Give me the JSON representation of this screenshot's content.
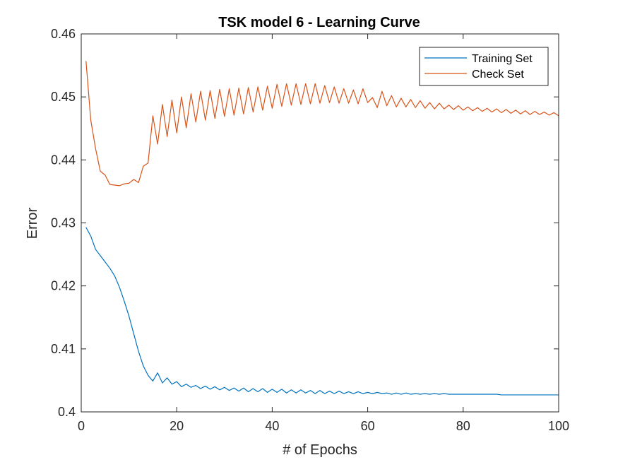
{
  "chart_data": {
    "type": "line",
    "title": "TSK model 6 - Learning Curve",
    "xlabel": "# of Epochs",
    "ylabel": "Error",
    "xlim": [
      0,
      100
    ],
    "ylim": [
      0.4,
      0.46
    ],
    "xticks": [
      0,
      20,
      40,
      60,
      80,
      100
    ],
    "xtick_labels": [
      "0",
      "20",
      "40",
      "60",
      "80",
      "100"
    ],
    "yticks": [
      0.4,
      0.41,
      0.42,
      0.43,
      0.44,
      0.45,
      0.46
    ],
    "ytick_labels": [
      "0.4",
      "0.41",
      "0.42",
      "0.43",
      "0.44",
      "0.45",
      "0.46"
    ],
    "grid": false,
    "legend_position": "top-right",
    "x": [
      1,
      2,
      3,
      4,
      5,
      6,
      7,
      8,
      9,
      10,
      11,
      12,
      13,
      14,
      15,
      16,
      17,
      18,
      19,
      20,
      21,
      22,
      23,
      24,
      25,
      26,
      27,
      28,
      29,
      30,
      31,
      32,
      33,
      34,
      35,
      36,
      37,
      38,
      39,
      40,
      41,
      42,
      43,
      44,
      45,
      46,
      47,
      48,
      49,
      50,
      51,
      52,
      53,
      54,
      55,
      56,
      57,
      58,
      59,
      60,
      61,
      62,
      63,
      64,
      65,
      66,
      67,
      68,
      69,
      70,
      71,
      72,
      73,
      74,
      75,
      76,
      77,
      78,
      79,
      80,
      81,
      82,
      83,
      84,
      85,
      86,
      87,
      88,
      89,
      90,
      91,
      92,
      93,
      94,
      95,
      96,
      97,
      98,
      99,
      100
    ],
    "series": [
      {
        "name": "Training Set",
        "color": "#0072BD",
        "values": [
          0.4293,
          0.4279,
          0.4258,
          0.4248,
          0.4238,
          0.4228,
          0.4216,
          0.4198,
          0.4176,
          0.4152,
          0.4124,
          0.4096,
          0.4073,
          0.4058,
          0.4049,
          0.4062,
          0.4046,
          0.4054,
          0.4044,
          0.4048,
          0.404,
          0.4044,
          0.4039,
          0.4042,
          0.4037,
          0.4041,
          0.4036,
          0.404,
          0.4035,
          0.4039,
          0.4034,
          0.4038,
          0.4033,
          0.4038,
          0.4032,
          0.4037,
          0.4032,
          0.4037,
          0.4031,
          0.4036,
          0.4031,
          0.4036,
          0.403,
          0.4035,
          0.403,
          0.4035,
          0.403,
          0.4034,
          0.4029,
          0.4034,
          0.4029,
          0.4033,
          0.4029,
          0.4033,
          0.4029,
          0.4032,
          0.4029,
          0.4032,
          0.4029,
          0.4031,
          0.4029,
          0.4031,
          0.4029,
          0.403,
          0.4028,
          0.403,
          0.4028,
          0.403,
          0.4028,
          0.4029,
          0.4028,
          0.4029,
          0.4028,
          0.4029,
          0.4028,
          0.4029,
          0.4028,
          0.4028,
          0.4028,
          0.4028,
          0.4028,
          0.4028,
          0.4028,
          0.4028,
          0.4028,
          0.4028,
          0.4028,
          0.4027,
          0.4027,
          0.4027,
          0.4027,
          0.4027,
          0.4027,
          0.4027,
          0.4027,
          0.4027,
          0.4027,
          0.4027,
          0.4027,
          0.4027
        ]
      },
      {
        "name": "Check Set",
        "color": "#D95319",
        "values": [
          0.4557,
          0.4463,
          0.4418,
          0.4382,
          0.4376,
          0.4361,
          0.436,
          0.4359,
          0.4362,
          0.4363,
          0.4369,
          0.4364,
          0.439,
          0.4395,
          0.447,
          0.4425,
          0.4488,
          0.4437,
          0.4495,
          0.4443,
          0.45,
          0.4451,
          0.4505,
          0.446,
          0.4509,
          0.4463,
          0.451,
          0.4466,
          0.4512,
          0.4469,
          0.4513,
          0.4471,
          0.4514,
          0.4473,
          0.4515,
          0.4476,
          0.4516,
          0.4479,
          0.4517,
          0.4482,
          0.452,
          0.4485,
          0.4521,
          0.4487,
          0.4521,
          0.4488,
          0.4521,
          0.4489,
          0.4521,
          0.449,
          0.4518,
          0.4491,
          0.4516,
          0.449,
          0.4513,
          0.449,
          0.4511,
          0.4489,
          0.4513,
          0.4491,
          0.4499,
          0.4483,
          0.4509,
          0.4486,
          0.4502,
          0.4484,
          0.4498,
          0.4484,
          0.4496,
          0.4483,
          0.4494,
          0.4482,
          0.4491,
          0.4481,
          0.449,
          0.4481,
          0.4487,
          0.448,
          0.4486,
          0.4479,
          0.4484,
          0.4478,
          0.4483,
          0.4477,
          0.4482,
          0.4476,
          0.4481,
          0.4475,
          0.448,
          0.4474,
          0.4479,
          0.4473,
          0.4478,
          0.4472,
          0.4477,
          0.4472,
          0.4476,
          0.4471,
          0.4475,
          0.447
        ]
      }
    ]
  }
}
